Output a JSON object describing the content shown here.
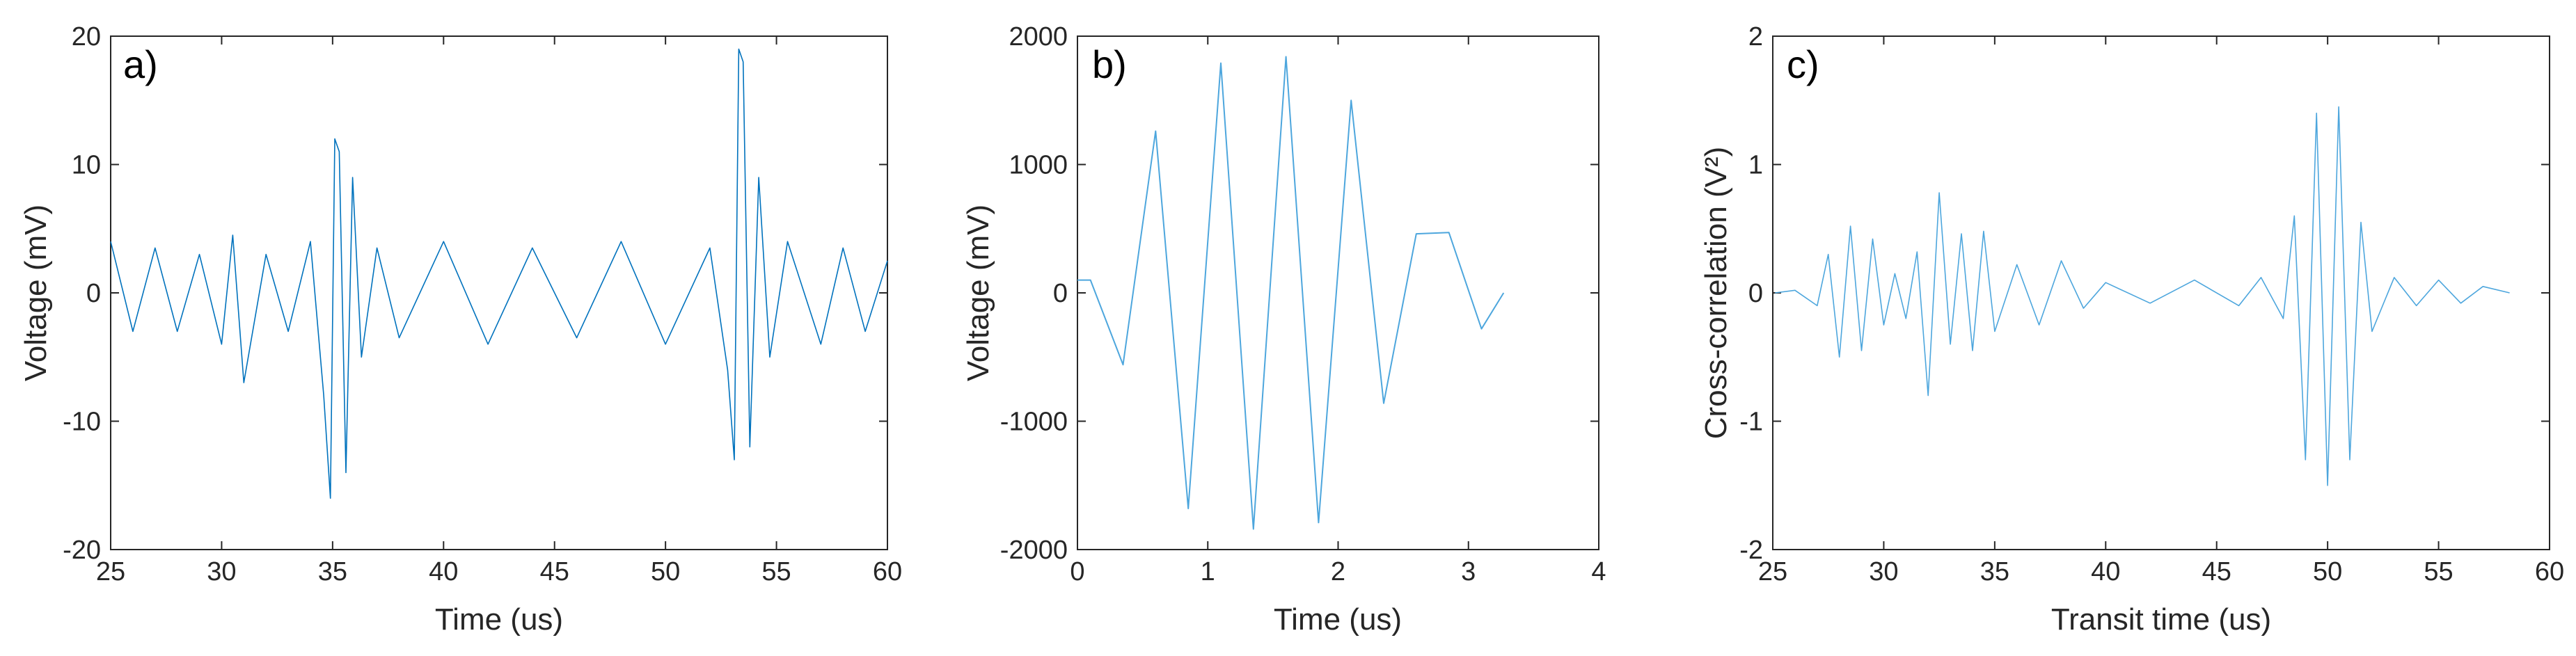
{
  "chart_data": [
    {
      "type": "line",
      "panel_label": "a)",
      "xlabel": "Time (us)",
      "ylabel": "Voltage (mV)",
      "xlim": [
        25,
        60
      ],
      "ylim": [
        -20,
        20
      ],
      "xticks": [
        "25",
        "30",
        "35",
        "40",
        "45",
        "50",
        "55",
        "60"
      ],
      "yticks": [
        "-20",
        "-10",
        "0",
        "10",
        "20"
      ],
      "color": "#0072BD",
      "line_width": 1.6,
      "series": [
        {
          "x": [
            25,
            26,
            27,
            28,
            29,
            30,
            30.5,
            31,
            32,
            33,
            34,
            34.6,
            34.9,
            35.1,
            35.3,
            35.6,
            35.9,
            36.3,
            37,
            38,
            40,
            42,
            44,
            46,
            48,
            50,
            52,
            52.8,
            53.1,
            53.3,
            53.5,
            53.8,
            54.2,
            54.7,
            55.5,
            57,
            58,
            59,
            60
          ],
          "y": [
            4,
            -3,
            3.5,
            -3,
            3,
            -4,
            4.5,
            -7,
            3,
            -3,
            4,
            -8,
            -16,
            12,
            11,
            -14,
            9,
            -5,
            3.5,
            -3.5,
            4,
            -4,
            3.5,
            -3.5,
            4,
            -4,
            3.5,
            -6,
            -13,
            19,
            18,
            -12,
            9,
            -5,
            4,
            -4,
            3.5,
            -3,
            2.5
          ]
        }
      ]
    },
    {
      "type": "line",
      "panel_label": "b)",
      "xlabel": "Time (us)",
      "ylabel": "Voltage (mV)",
      "xlim": [
        0,
        4
      ],
      "ylim": [
        -2000,
        2000
      ],
      "xticks": [
        "0",
        "1",
        "2",
        "3",
        "4"
      ],
      "yticks": [
        "-2000",
        "-1000",
        "0",
        "1000",
        "2000"
      ],
      "color": "#4DA6DD",
      "line_width": 2,
      "series": [
        {
          "x": [
            0.0,
            0.1,
            0.35,
            0.6,
            0.85,
            1.1,
            1.35,
            1.6,
            1.85,
            2.1,
            2.35,
            2.6,
            2.85,
            3.1,
            3.27
          ],
          "y": [
            100,
            100,
            -560,
            1260,
            -1680,
            1790,
            -1840,
            1840,
            -1790,
            1500,
            -860,
            460,
            470,
            -280,
            0
          ]
        }
      ]
    },
    {
      "type": "line",
      "panel_label": "c)",
      "xlabel": "Transit time (us)",
      "ylabel": "Cross-correlation (V²)",
      "xlim": [
        25,
        60
      ],
      "ylim": [
        -2,
        2
      ],
      "xticks": [
        "25",
        "30",
        "35",
        "40",
        "45",
        "50",
        "55",
        "60"
      ],
      "yticks": [
        "-2",
        "-1",
        "0",
        "1",
        "2"
      ],
      "color": "#4DA6DD",
      "line_width": 1.6,
      "series": [
        {
          "x": [
            25.1,
            26,
            27,
            27.5,
            28,
            28.5,
            29,
            29.5,
            30,
            30.5,
            31,
            31.5,
            32,
            32.5,
            33,
            33.5,
            34,
            34.5,
            35,
            36,
            37,
            38,
            39,
            40,
            42,
            44,
            46,
            47,
            48,
            48.5,
            49,
            49.5,
            50,
            50.5,
            51,
            51.5,
            52,
            53,
            54,
            55,
            56,
            57,
            58.2
          ],
          "y": [
            0,
            0.02,
            -0.1,
            0.3,
            -0.5,
            0.52,
            -0.45,
            0.42,
            -0.25,
            0.15,
            -0.2,
            0.32,
            -0.8,
            0.78,
            -0.4,
            0.46,
            -0.45,
            0.48,
            -0.3,
            0.22,
            -0.25,
            0.25,
            -0.12,
            0.08,
            -0.08,
            0.1,
            -0.1,
            0.12,
            -0.2,
            0.6,
            -1.3,
            1.4,
            -1.5,
            1.45,
            -1.3,
            0.55,
            -0.3,
            0.12,
            -0.1,
            0.1,
            -0.08,
            0.05,
            0
          ]
        }
      ]
    }
  ]
}
